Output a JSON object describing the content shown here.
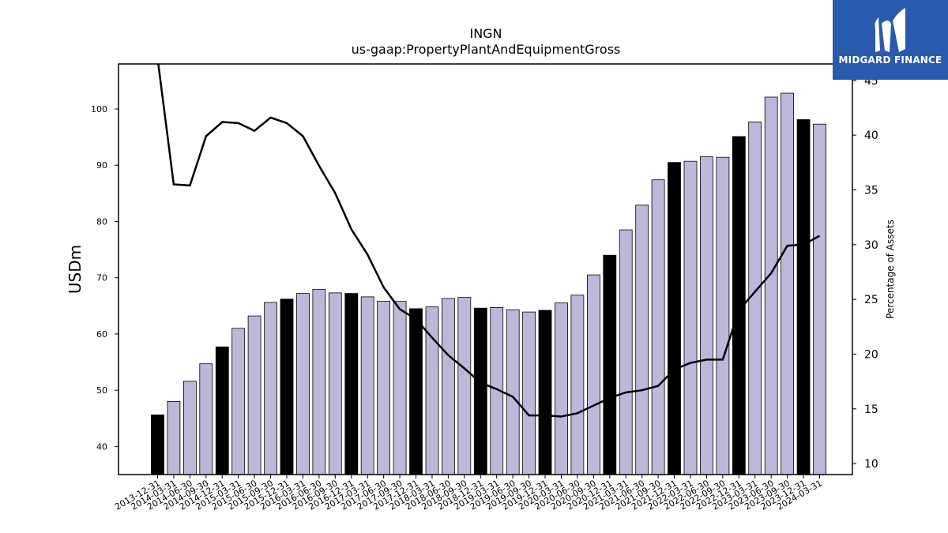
{
  "brand": {
    "name": "MIDGARD FINANCE",
    "logo_bg": "#2a5aac",
    "logo_icon": "midgard-m-logo-icon"
  },
  "chart_data": {
    "type": "bar",
    "title": "INGN",
    "subtitle": "us-gaap:PropertyPlantAndEquipmentGross",
    "ylabel": "USDm",
    "y2label": "Percentage of Assets",
    "ylim": [
      35,
      108
    ],
    "y2lim": [
      9,
      46.5
    ],
    "yticks": [
      40,
      50,
      60,
      70,
      80,
      90,
      100
    ],
    "y2ticks": [
      10,
      15,
      20,
      25,
      30,
      35,
      40,
      45
    ],
    "grid": false,
    "colors": {
      "bar_default": "#bcb8d9",
      "bar_q4": "#000000",
      "line": "#000000"
    },
    "categories": [
      "2013-12-31",
      "2014-03-31",
      "2014-06-30",
      "2014-09-30",
      "2014-12-31",
      "2015-03-31",
      "2015-06-30",
      "2015-09-30",
      "2015-12-31",
      "2016-03-31",
      "2016-06-30",
      "2016-09-30",
      "2016-12-31",
      "2017-03-31",
      "2017-06-30",
      "2017-09-30",
      "2017-12-31",
      "2018-03-31",
      "2018-06-30",
      "2018-09-30",
      "2018-12-31",
      "2019-03-31",
      "2019-06-30",
      "2019-09-30",
      "2019-12-31",
      "2020-03-31",
      "2020-06-30",
      "2020-09-30",
      "2020-12-31",
      "2021-03-31",
      "2021-06-30",
      "2021-09-30",
      "2021-12-31",
      "2022-03-31",
      "2022-06-30",
      "2022-09-30",
      "2022-12-31",
      "2023-03-31",
      "2023-06-30",
      "2023-09-30",
      "2023-12-31",
      "2024-03-31"
    ],
    "series": [
      {
        "type": "bar",
        "values": [
          45.6,
          48.0,
          51.6,
          54.7,
          57.7,
          61.0,
          63.2,
          65.6,
          66.2,
          67.2,
          67.9,
          67.3,
          67.2,
          66.6,
          65.8,
          65.8,
          64.5,
          64.8,
          66.3,
          66.5,
          64.6,
          64.7,
          64.3,
          63.9,
          64.2,
          65.5,
          66.9,
          70.5,
          74.0,
          78.5,
          82.9,
          87.4,
          90.5,
          90.7,
          91.5,
          91.4,
          95.1,
          97.7,
          102.1,
          102.8,
          98.1,
          97.3
        ]
      },
      {
        "type": "line",
        "axis": "right",
        "values": [
          47.0,
          35.5,
          35.4,
          39.9,
          41.2,
          41.1,
          40.4,
          41.6,
          41.1,
          39.9,
          37.2,
          34.7,
          31.4,
          29.1,
          26.1,
          24.1,
          23.2,
          21.5,
          19.9,
          18.7,
          17.4,
          16.8,
          16.1,
          14.4,
          14.4,
          14.3,
          14.6,
          15.3,
          16.0,
          16.5,
          16.7,
          17.1,
          18.6,
          19.2,
          19.5,
          19.5,
          24.0,
          25.7,
          27.4,
          29.9,
          30.0,
          30.8
        ]
      }
    ]
  }
}
